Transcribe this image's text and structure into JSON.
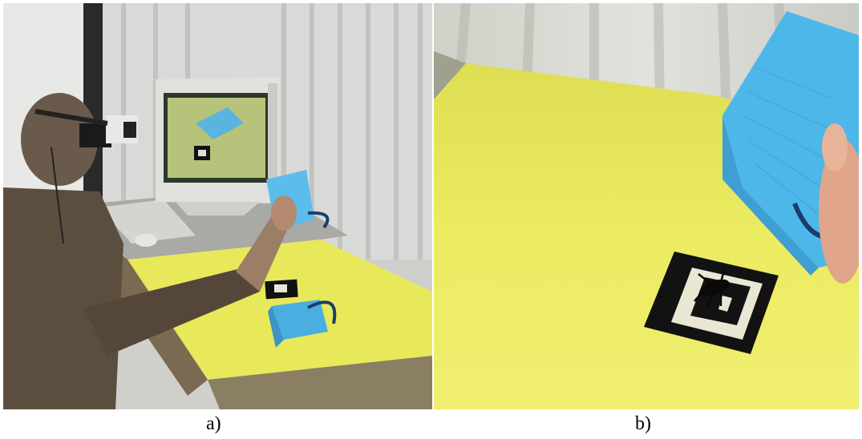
{
  "panels": [
    {
      "caption": "a)",
      "description_icon": "photo-user-with-hmd-at-desk"
    },
    {
      "caption": "b)",
      "description_icon": "photo-ar-view-yellow-table"
    }
  ],
  "colors": {
    "table_yellow": "#e8ea55",
    "foam_blue": "#4fb6e6",
    "marker_black": "#111111",
    "curtain": "#d8d8d6"
  }
}
